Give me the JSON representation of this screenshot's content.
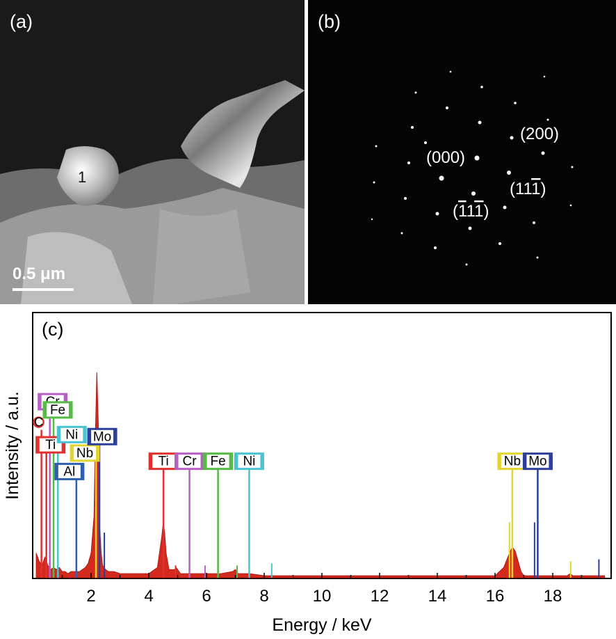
{
  "panels": {
    "a": {
      "label": "(a)",
      "particle_label": "1",
      "scale_bar": "0.5 μm"
    },
    "b": {
      "label": "(b)",
      "spots": [
        "(200)",
        "(000)",
        "(11̅)",
        "(̅111̅)"
      ]
    },
    "c": {
      "label": "(c)"
    }
  },
  "diffraction_labels": {
    "s200": "(200)",
    "s000": "(000)"
  },
  "chart_data": {
    "type": "line",
    "title": "",
    "xlabel": "Energy / keV",
    "ylabel": "Intensity / a.u.",
    "xlim": [
      0,
      20
    ],
    "xticks": [
      2,
      4,
      6,
      8,
      10,
      12,
      14,
      16,
      18
    ],
    "grid": false,
    "spectrum": {
      "x": [
        0.1,
        0.2,
        0.3,
        0.4,
        0.5,
        0.6,
        0.7,
        0.8,
        0.9,
        1.0,
        1.1,
        1.2,
        1.3,
        1.4,
        1.5,
        1.6,
        1.7,
        1.8,
        1.9,
        2.0,
        2.1,
        2.15,
        2.2,
        2.25,
        2.3,
        2.35,
        2.4,
        2.5,
        2.6,
        2.8,
        3.0,
        3.5,
        4.0,
        4.3,
        4.45,
        4.5,
        4.55,
        4.6,
        4.7,
        4.9,
        4.95,
        5.0,
        5.1,
        5.5,
        6.0,
        6.5,
        6.9,
        7.0,
        7.1,
        7.5,
        8.0,
        9.0,
        10.0,
        12.0,
        14.0,
        16.0,
        16.3,
        16.5,
        16.6,
        16.7,
        16.8,
        16.9,
        17.0,
        17.5,
        18.5,
        18.6,
        18.7,
        19.0,
        19.8
      ],
      "y": [
        0.12,
        0.08,
        0.06,
        0.1,
        0.06,
        0.04,
        0.05,
        0.04,
        0.05,
        0.03,
        0.03,
        0.02,
        0.03,
        0.03,
        0.03,
        0.03,
        0.04,
        0.05,
        0.07,
        0.12,
        0.3,
        0.7,
        1.0,
        0.75,
        0.25,
        0.12,
        0.06,
        0.04,
        0.03,
        0.03,
        0.02,
        0.02,
        0.02,
        0.05,
        0.2,
        0.27,
        0.22,
        0.12,
        0.04,
        0.04,
        0.05,
        0.04,
        0.02,
        0.02,
        0.02,
        0.02,
        0.03,
        0.04,
        0.02,
        0.02,
        0.01,
        0.01,
        0.01,
        0.01,
        0.01,
        0.01,
        0.05,
        0.12,
        0.15,
        0.13,
        0.08,
        0.03,
        0.01,
        0.01,
        0.01,
        0.02,
        0.01,
        0.01,
        0.01
      ]
    },
    "element_lines": [
      {
        "element": "C",
        "energy": 0.28,
        "height": 0.72,
        "color": "#e0302e"
      },
      {
        "element": "Ti",
        "energy": 0.45,
        "height": 0.61,
        "color": "#e0302e"
      },
      {
        "element": "Cr",
        "energy": 0.57,
        "height": 0.82,
        "color": "#b65fc4"
      },
      {
        "element": "Fe",
        "energy": 0.7,
        "height": 0.78,
        "color": "#55bb44"
      },
      {
        "element": "Ni",
        "energy": 0.85,
        "height": 0.66,
        "color": "#49c3d2"
      },
      {
        "element": "Al",
        "energy": 1.49,
        "height": 0.48,
        "color": "#2f5fb0"
      },
      {
        "element": "Nb",
        "energy": 2.17,
        "height": 0.57,
        "color": "#e3d52f"
      },
      {
        "element": "Mo",
        "energy": 2.29,
        "height": 0.65,
        "color": "#2d3f9a"
      },
      {
        "element": "Ti",
        "energy": 4.51,
        "height": 0.53,
        "color": "#e0302e"
      },
      {
        "element": "Cr",
        "energy": 5.41,
        "height": 0.53,
        "color": "#b65fc4"
      },
      {
        "element": "Fe",
        "energy": 6.4,
        "height": 0.53,
        "color": "#55bb44"
      },
      {
        "element": "Ni",
        "energy": 7.48,
        "height": 0.53,
        "color": "#49c3d2"
      },
      {
        "element": "Nb",
        "energy": 16.6,
        "height": 0.53,
        "color": "#e3d52f"
      },
      {
        "element": "Mo",
        "energy": 17.48,
        "height": 0.53,
        "color": "#2d3f9a"
      }
    ],
    "minor_lines": [
      {
        "energy": 2.46,
        "height": 0.22,
        "color": "#2d3f9a"
      },
      {
        "energy": 4.93,
        "height": 0.06,
        "color": "#e0302e"
      },
      {
        "energy": 5.95,
        "height": 0.06,
        "color": "#b65fc4"
      },
      {
        "energy": 7.06,
        "height": 0.06,
        "color": "#55bb44"
      },
      {
        "energy": 8.26,
        "height": 0.07,
        "color": "#49c3d2"
      },
      {
        "energy": 16.5,
        "height": 0.27,
        "color": "#e3d52f"
      },
      {
        "energy": 17.37,
        "height": 0.27,
        "color": "#2d3f9a"
      },
      {
        "energy": 18.62,
        "height": 0.08,
        "color": "#e3d52f"
      },
      {
        "energy": 19.6,
        "height": 0.09,
        "color": "#2d3f9a"
      }
    ]
  }
}
